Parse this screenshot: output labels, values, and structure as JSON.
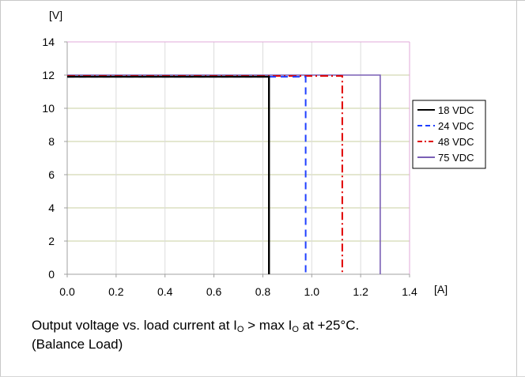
{
  "chart_data": {
    "type": "line",
    "ylabel": "[V]",
    "xlabel": "[A]",
    "xlim": [
      0.0,
      1.4
    ],
    "ylim": [
      0,
      14
    ],
    "xticks": [
      "0.0",
      "0.2",
      "0.4",
      "0.6",
      "0.8",
      "1.0",
      "1.2",
      "1.4"
    ],
    "yticks": [
      "0",
      "2",
      "4",
      "6",
      "8",
      "10",
      "12",
      "14"
    ],
    "grid": true,
    "legend_position": "right",
    "series": [
      {
        "name": "18 VDC",
        "color": "#000000",
        "style": "solid",
        "points": [
          [
            0.0,
            11.9
          ],
          [
            0.825,
            11.9
          ],
          [
            0.825,
            0
          ]
        ]
      },
      {
        "name": "24 VDC",
        "color": "#1f3fff",
        "style": "dash",
        "points": [
          [
            0.0,
            11.9
          ],
          [
            0.975,
            11.9
          ],
          [
            0.975,
            0
          ]
        ]
      },
      {
        "name": "48 VDC",
        "color": "#e00000",
        "style": "dashdot",
        "points": [
          [
            0.0,
            11.95
          ],
          [
            1.125,
            11.95
          ],
          [
            1.125,
            0
          ]
        ]
      },
      {
        "name": "75 VDC",
        "color": "#7a5fb5",
        "style": "solid",
        "points": [
          [
            0.0,
            12.0
          ],
          [
            1.28,
            12.0
          ],
          [
            1.28,
            0
          ]
        ]
      }
    ]
  },
  "caption": {
    "line1_prefix": "Output voltage vs. load current at I",
    "sub1": "O",
    "line1_mid": " > max I",
    "sub2": "O",
    "line1_suffix": " at +25°C.",
    "line2": "(Balance Load)"
  }
}
